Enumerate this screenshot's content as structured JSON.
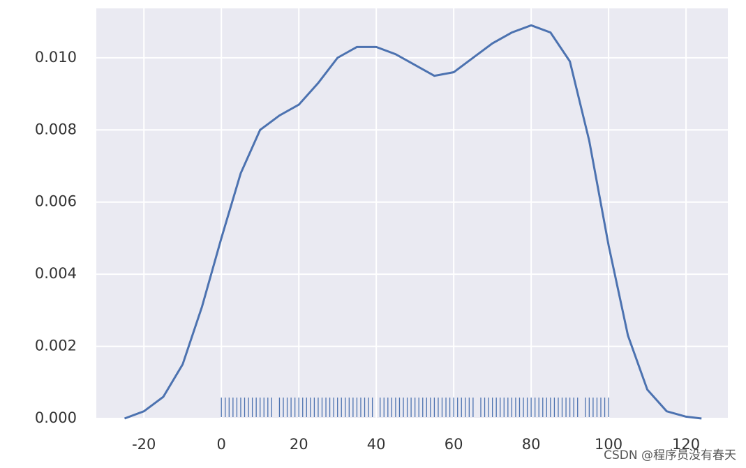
{
  "chart_data": {
    "type": "kde",
    "x": [
      -25,
      -20,
      -15,
      -10,
      -5,
      0,
      5,
      10,
      15,
      20,
      25,
      30,
      35,
      40,
      45,
      50,
      55,
      60,
      65,
      70,
      75,
      80,
      85,
      90,
      95,
      100,
      105,
      110,
      115,
      120,
      124
    ],
    "values": [
      0.0,
      0.0002,
      0.0006,
      0.0015,
      0.0031,
      0.005,
      0.0068,
      0.008,
      0.0084,
      0.0087,
      0.0093,
      0.01,
      0.0103,
      0.0103,
      0.0101,
      0.0098,
      0.0095,
      0.0096,
      0.01,
      0.0104,
      0.0107,
      0.0109,
      0.0107,
      0.0099,
      0.0077,
      0.0048,
      0.0023,
      0.0008,
      0.0002,
      5e-05,
      0.0
    ],
    "rug": [
      0,
      1,
      2,
      3,
      4,
      5,
      6,
      7,
      8,
      9,
      10,
      11,
      12,
      13,
      15,
      16,
      17,
      18,
      19,
      20,
      21,
      22,
      23,
      24,
      25,
      26,
      27,
      28,
      29,
      30,
      31,
      32,
      33,
      34,
      35,
      36,
      37,
      38,
      39,
      41,
      42,
      43,
      44,
      45,
      46,
      47,
      48,
      49,
      50,
      51,
      52,
      53,
      54,
      55,
      56,
      57,
      58,
      59,
      60,
      61,
      62,
      63,
      64,
      65,
      67,
      68,
      69,
      70,
      71,
      72,
      73,
      74,
      75,
      76,
      77,
      78,
      79,
      80,
      81,
      82,
      83,
      84,
      85,
      86,
      87,
      88,
      89,
      90,
      91,
      92,
      94,
      95,
      96,
      97,
      98,
      99,
      100
    ],
    "color": "#4c72b0",
    "xlim": [
      -32.3,
      130.8
    ],
    "ylim": [
      0,
      0.01137
    ],
    "xticks": [
      -20,
      0,
      20,
      40,
      60,
      80,
      100,
      120
    ],
    "yticks": [
      {
        "value": 0,
        "label": "0.000"
      },
      {
        "value": 0.002,
        "label": "0.002"
      },
      {
        "value": 0.004,
        "label": "0.004"
      },
      {
        "value": 0.006,
        "label": "0.006"
      },
      {
        "value": 0.008,
        "label": "0.008"
      },
      {
        "value": 0.01,
        "label": "0.010"
      }
    ],
    "grid": true
  },
  "watermark": "CSDN @程序员没有春天"
}
